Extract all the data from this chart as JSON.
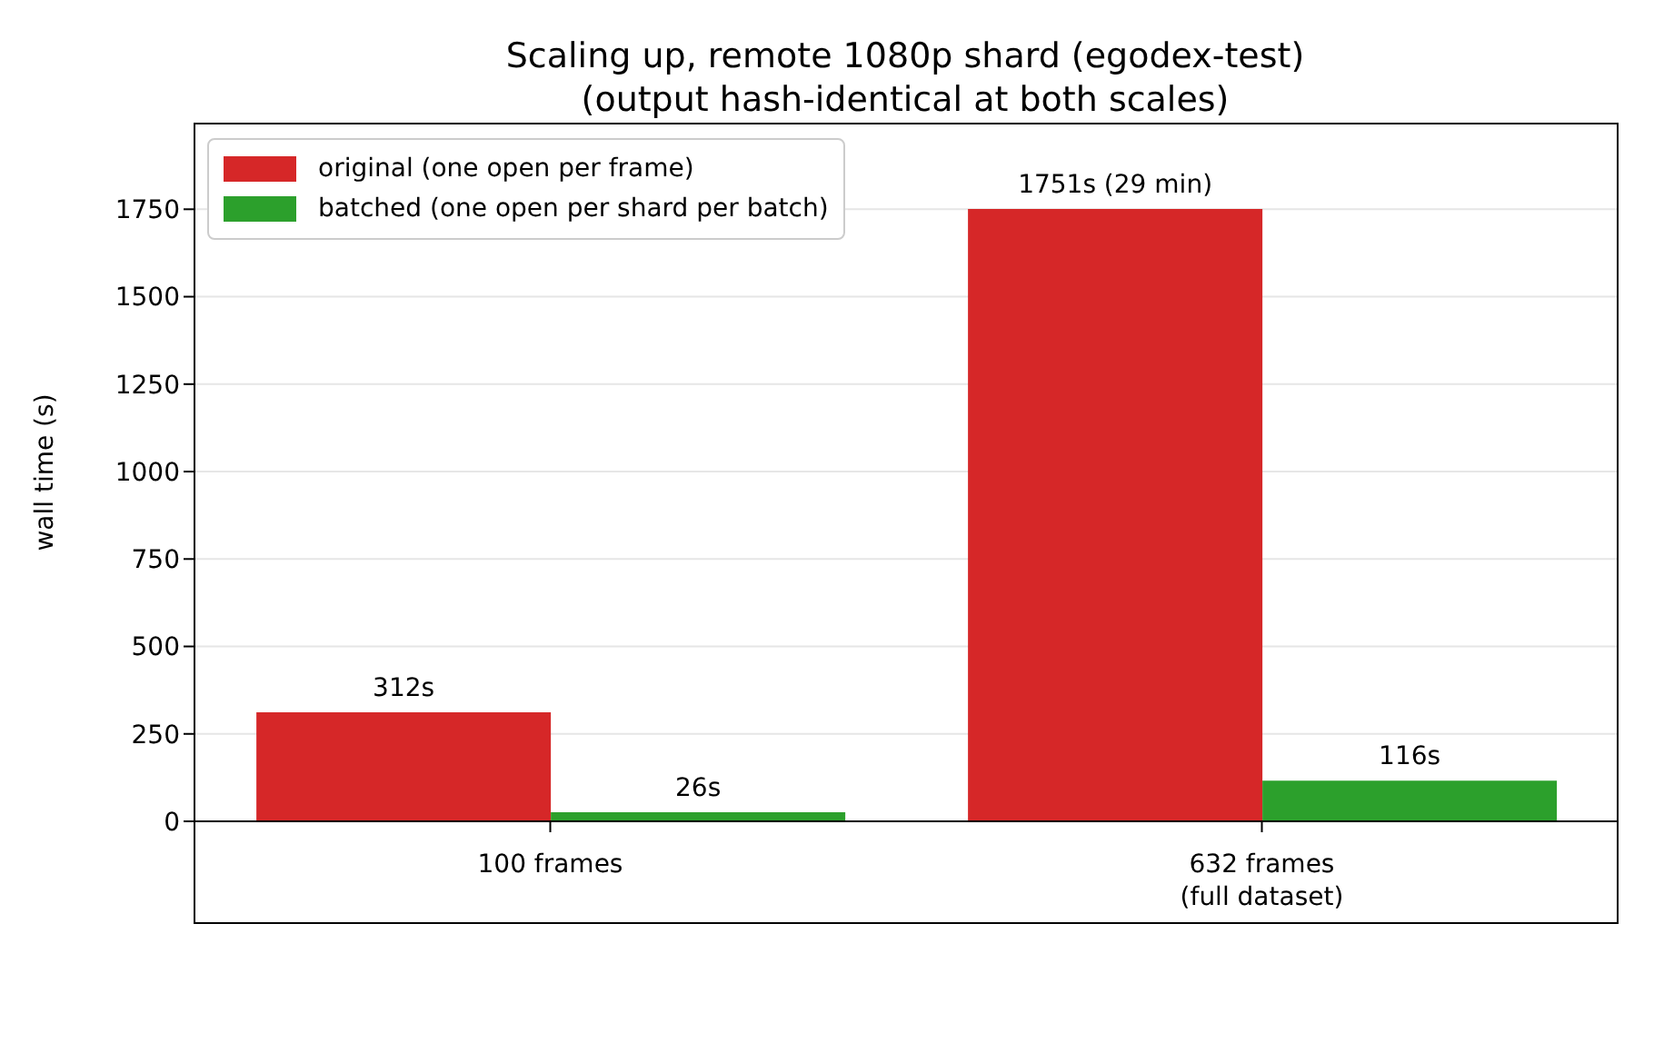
{
  "chart_data": {
    "type": "bar",
    "title": "Scaling up, remote 1080p shard (egodex-test)\n(output hash-identical at both scales)",
    "ylabel": "wall time (s)",
    "categories": [
      "100 frames",
      "632 frames\n(full dataset)"
    ],
    "series": [
      {
        "name": "original (one open per frame)",
        "color": "#d62728",
        "values": [
          312,
          1751
        ],
        "value_labels": [
          "312s",
          "1751s (29 min)"
        ]
      },
      {
        "name": "batched (one open per shard per batch)",
        "color": "#2ca02c",
        "values": [
          26,
          116
        ],
        "value_labels": [
          "26s",
          "116s"
        ]
      }
    ],
    "ylim": [
      0,
      1995
    ],
    "yticks": [
      0,
      250,
      500,
      750,
      1000,
      1250,
      1500,
      1750
    ],
    "grid": "y",
    "legend": "top left"
  }
}
